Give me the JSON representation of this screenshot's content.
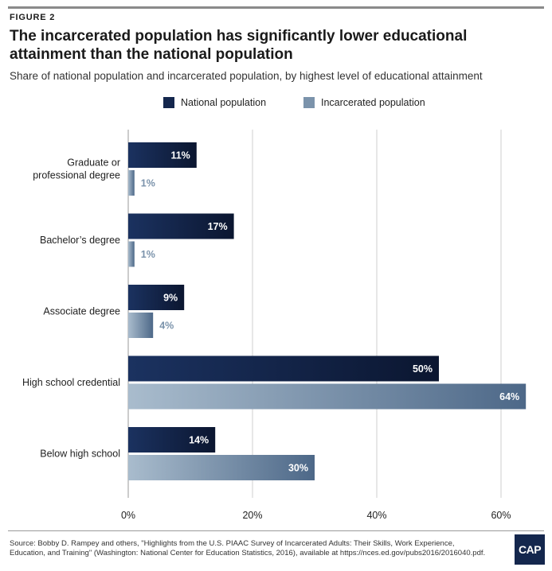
{
  "figure_label": "FIGURE 2",
  "source": "Source: Bobby D. Rampey and others, \"Highlights from the U.S. PIAAC Survey of Incarcerated Adults: Their Skills, Work Experience, Education, and Training\" (Washington: National Center for Education Statistics, 2016), available at https://nces.ed.gov/pubs2016/2016040.pdf.",
  "logo_text": "CAP",
  "colors": {
    "national": "#14274d",
    "national_dark": "#0b1630",
    "incarcerated": "#7b93ab",
    "incarcerated_dark": "#4d6888",
    "incarcerated_light": "#a9bccd",
    "grid": "#cfcfcf"
  },
  "chart_data": {
    "type": "bar",
    "orientation": "horizontal",
    "title": "The incarcerated population has significantly lower educational attainment than the national population",
    "subtitle": "Share of national population and incarcerated population, by highest level of educational attainment",
    "categories": [
      "Graduate or professional degree",
      "Bachelor’s degree",
      "Associate degree",
      "High school credential",
      "Below high school"
    ],
    "category_lines": [
      [
        "Graduate or",
        "professional degree"
      ],
      [
        "Bachelor’s degree"
      ],
      [
        "Associate degree"
      ],
      [
        "High school credential"
      ],
      [
        "Below high school"
      ]
    ],
    "series": [
      {
        "name": "National population",
        "values": [
          11,
          17,
          9,
          50,
          14
        ],
        "labels": [
          "11%",
          "17%",
          "9%",
          "50%",
          "14%"
        ]
      },
      {
        "name": "Incarcerated population",
        "values": [
          1,
          1,
          4,
          64,
          30
        ],
        "labels": [
          "1%",
          "1%",
          "4%",
          "64%",
          "30%"
        ]
      }
    ],
    "xlim": [
      0,
      64
    ],
    "xticks": [
      0,
      20,
      40,
      60
    ],
    "xtick_labels": [
      "0%",
      "20%",
      "40%",
      "60%"
    ],
    "grid": true,
    "legend_position": "top-center"
  }
}
